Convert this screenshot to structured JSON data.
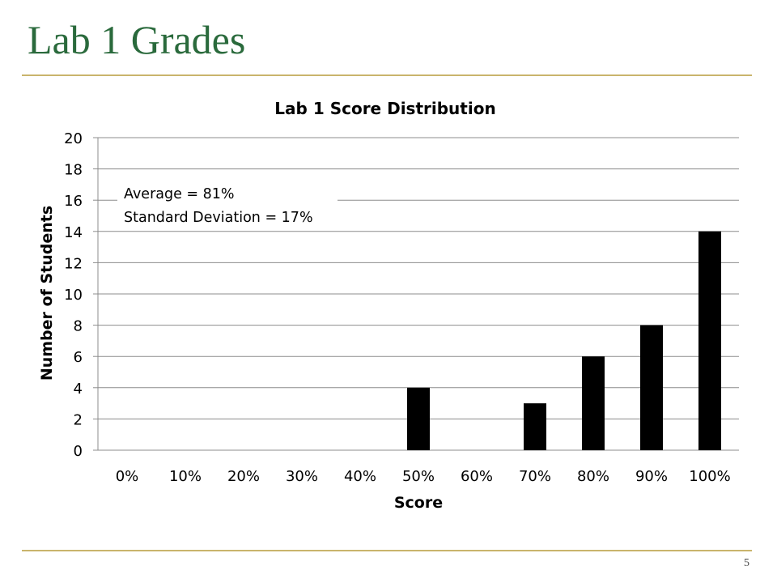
{
  "slide": {
    "title": "Lab 1 Grades",
    "page_number": "5",
    "rule_color": "#c9b46c",
    "title_color": "#2a6a3c"
  },
  "chart_data": {
    "type": "bar",
    "title": "Lab 1 Score Distribution",
    "xlabel": "Score",
    "ylabel": "Number of Students",
    "categories": [
      "0%",
      "10%",
      "20%",
      "30%",
      "40%",
      "50%",
      "60%",
      "70%",
      "80%",
      "90%",
      "100%"
    ],
    "values": [
      0,
      0,
      0,
      0,
      0,
      4,
      0,
      3,
      6,
      8,
      14
    ],
    "ylim": [
      0,
      20
    ],
    "yticks": [
      0,
      2,
      4,
      6,
      8,
      10,
      12,
      14,
      16,
      18,
      20
    ],
    "grid": "horizontal",
    "bar_color": "#000000",
    "annotation": [
      "Average = 81%",
      "Standard Deviation = 17%"
    ]
  }
}
